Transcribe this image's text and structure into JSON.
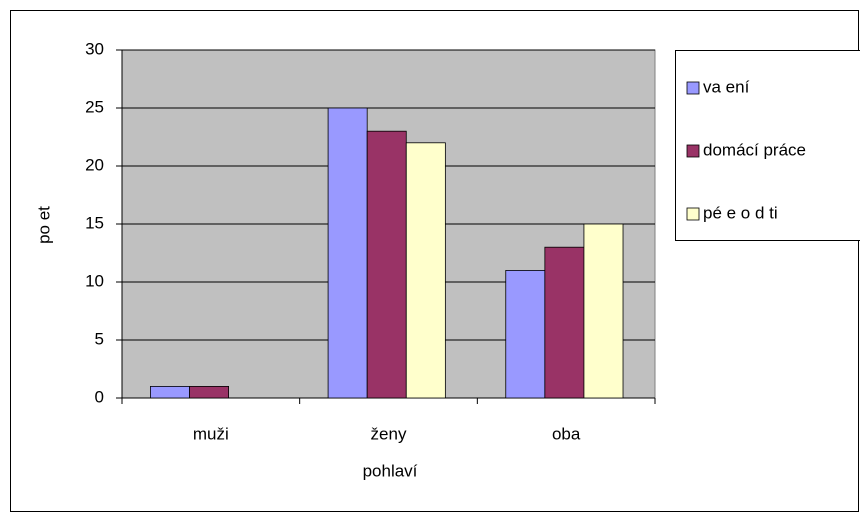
{
  "chart_data": {
    "type": "bar",
    "categories": [
      "muži",
      "ženy",
      "oba"
    ],
    "series": [
      {
        "name": "va ení",
        "color": "#9999ff",
        "values": [
          1,
          25,
          11
        ]
      },
      {
        "name": "domácí práce",
        "color": "#993366",
        "values": [
          1,
          23,
          13
        ]
      },
      {
        "name": "pé e o d ti",
        "color": "#ffffcc",
        "values": [
          0,
          22,
          15
        ]
      }
    ],
    "xlabel": "pohlaví",
    "ylabel": "po et",
    "ylim": [
      0,
      30
    ],
    "yticks": [
      0,
      5,
      10,
      15,
      20,
      25,
      30
    ],
    "grid": true,
    "legend": "right"
  }
}
